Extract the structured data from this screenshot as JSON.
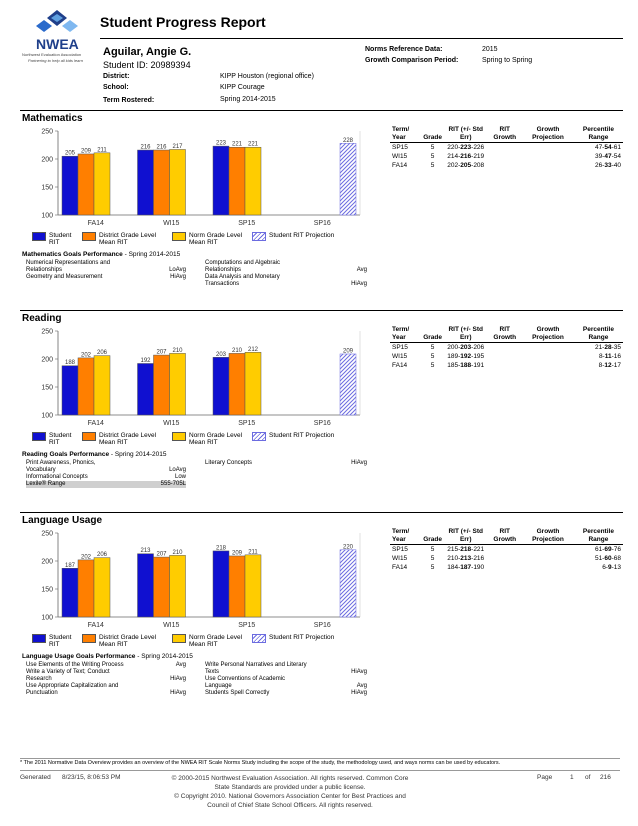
{
  "logo": {
    "name": "NWEA",
    "subtitle": "Northwest Evaluation Association",
    "tagline": "Partnering to help all kids learn"
  },
  "report": {
    "title": "Student Progress Report"
  },
  "student": {
    "name": "Aguilar, Angie G.",
    "id": "Student ID: 20989394",
    "district_label": "District:",
    "district": "KIPP Houston (regional office)",
    "school_label": "School:",
    "school": "KIPP Courage",
    "term_label": "Term Rostered:",
    "term": "Spring 2014-2015",
    "norms_label": "Norms Reference Data:",
    "norms": "2015",
    "growth_label": "Growth Comparison Period:",
    "growth": "Spring to Spring"
  },
  "table_headers": [
    "Term/ Year",
    "Grade",
    "RIT (+/- Std Err)",
    "RIT Growth",
    "Growth Projection",
    "Percentile Range"
  ],
  "legend": {
    "student_rit": "Student RIT",
    "district": "District Grade Level Mean RIT",
    "norm": "Norm Grade Level Mean RIT",
    "projection": "Student RIT Projection"
  },
  "colors": {
    "student": "#1010d0",
    "district": "#ff7f00",
    "norm": "#ffcc00",
    "projection": "#6c6ce0"
  },
  "sections": [
    {
      "title": "Mathematics",
      "chart_data": {
        "type": "bar",
        "categories": [
          "FA14",
          "WI15",
          "SP15",
          "SP16"
        ],
        "ylim": [
          100,
          250
        ],
        "yticks": [
          100,
          150,
          200,
          250
        ],
        "series": [
          {
            "name": "Student RIT",
            "values": [
              205,
              216,
              223,
              null
            ]
          },
          {
            "name": "District Grade Level Mean RIT",
            "values": [
              209,
              216,
              221,
              null
            ]
          },
          {
            "name": "Norm Grade Level Mean RIT",
            "values": [
              211,
              217,
              221,
              null
            ]
          },
          {
            "name": "Student RIT Projection",
            "values": [
              null,
              null,
              null,
              228
            ]
          }
        ]
      },
      "rows": [
        {
          "term": "SP15",
          "grade": "5",
          "rit_lo": "220-",
          "rit": "223",
          "rit_hi": "-226",
          "growth": "",
          "proj": "",
          "pct_lo": "47-",
          "pct": "54",
          "pct_hi": "-61"
        },
        {
          "term": "WI15",
          "grade": "5",
          "rit_lo": "214-",
          "rit": "216",
          "rit_hi": "-219",
          "growth": "",
          "proj": "",
          "pct_lo": "39-",
          "pct": "47",
          "pct_hi": "-54"
        },
        {
          "term": "FA14",
          "grade": "5",
          "rit_lo": "202-",
          "rit": "205",
          "rit_hi": "-208",
          "growth": "",
          "proj": "",
          "pct_lo": "26-",
          "pct": "33",
          "pct_hi": "-40"
        }
      ],
      "goals_title": "Mathematics Goals Performance",
      "goals_term": " - Spring 2014-2015",
      "goals_left": [
        {
          "name": "Numerical Representations and",
          "level": ""
        },
        {
          "name": "Relationships",
          "level": "LoAvg"
        },
        {
          "name": "Geometry and Measurement",
          "level": "HiAvg"
        }
      ],
      "goals_right": [
        {
          "name": "Computations and Algebraic",
          "level": ""
        },
        {
          "name": "Relationships",
          "level": "Avg"
        },
        {
          "name": "Data Analysis and Monetary",
          "level": ""
        },
        {
          "name": "Transactions",
          "level": "HiAvg"
        }
      ]
    },
    {
      "title": "Reading",
      "chart_data": {
        "type": "bar",
        "categories": [
          "FA14",
          "WI15",
          "SP15",
          "SP16"
        ],
        "ylim": [
          100,
          250
        ],
        "yticks": [
          100,
          150,
          200,
          250
        ],
        "series": [
          {
            "name": "Student RIT",
            "values": [
              188,
              192,
              203,
              null
            ]
          },
          {
            "name": "District Grade Level Mean RIT",
            "values": [
              202,
              207,
              210,
              null
            ]
          },
          {
            "name": "Norm Grade Level Mean RIT",
            "values": [
              206,
              210,
              212,
              null
            ]
          },
          {
            "name": "Student RIT Projection",
            "values": [
              null,
              null,
              null,
              209
            ]
          }
        ]
      },
      "rows": [
        {
          "term": "SP15",
          "grade": "5",
          "rit_lo": "200-",
          "rit": "203",
          "rit_hi": "-206",
          "growth": "",
          "proj": "",
          "pct_lo": "21-",
          "pct": "28",
          "pct_hi": "-35"
        },
        {
          "term": "WI15",
          "grade": "5",
          "rit_lo": "189-",
          "rit": "192",
          "rit_hi": "-195",
          "growth": "",
          "proj": "",
          "pct_lo": "8-",
          "pct": "11",
          "pct_hi": "-16"
        },
        {
          "term": "FA14",
          "grade": "5",
          "rit_lo": "185-",
          "rit": "188",
          "rit_hi": "-191",
          "growth": "",
          "proj": "",
          "pct_lo": "8-",
          "pct": "12",
          "pct_hi": "-17"
        }
      ],
      "goals_title": "Reading Goals Performance",
      "goals_term": " - Spring 2014-2015",
      "goals_left": [
        {
          "name": "Print Awareness, Phonics,",
          "level": ""
        },
        {
          "name": "Vocabulary",
          "level": "LoAvg"
        },
        {
          "name": "Informational Concepts",
          "level": "Low"
        },
        {
          "name": "Lexile® Range",
          "level": "555-705L"
        }
      ],
      "goals_right": [
        {
          "name": "Literary Concepts",
          "level": "HiAvg"
        }
      ]
    },
    {
      "title": "Language Usage",
      "chart_data": {
        "type": "bar",
        "categories": [
          "FA14",
          "WI15",
          "SP15",
          "SP16"
        ],
        "ylim": [
          100,
          250
        ],
        "yticks": [
          100,
          150,
          200,
          250
        ],
        "series": [
          {
            "name": "Student RIT",
            "values": [
              187,
              213,
              218,
              null
            ]
          },
          {
            "name": "District Grade Level Mean RIT",
            "values": [
              202,
              207,
              209,
              null
            ]
          },
          {
            "name": "Norm Grade Level Mean RIT",
            "values": [
              206,
              210,
              211,
              null
            ]
          },
          {
            "name": "Student RIT Projection",
            "values": [
              null,
              null,
              null,
              220
            ]
          }
        ]
      },
      "rows": [
        {
          "term": "SP15",
          "grade": "5",
          "rit_lo": "215-",
          "rit": "218",
          "rit_hi": "-221",
          "growth": "",
          "proj": "",
          "pct_lo": "61-",
          "pct": "69",
          "pct_hi": "-76"
        },
        {
          "term": "WI15",
          "grade": "5",
          "rit_lo": "210-",
          "rit": "213",
          "rit_hi": "-216",
          "growth": "",
          "proj": "",
          "pct_lo": "51-",
          "pct": "60",
          "pct_hi": "-68"
        },
        {
          "term": "FA14",
          "grade": "5",
          "rit_lo": "184-",
          "rit": "187",
          "rit_hi": "-190",
          "growth": "",
          "proj": "",
          "pct_lo": "6-",
          "pct": "9",
          "pct_hi": "-13"
        }
      ],
      "goals_title": "Language Usage Goals Performance",
      "goals_term": " - Spring 2014-2015",
      "goals_left": [
        {
          "name": "Use Elements of the Writing Process",
          "level": "Avg"
        },
        {
          "name": "Write a Variety of Text; Conduct",
          "level": ""
        },
        {
          "name": "Research",
          "level": "HiAvg"
        },
        {
          "name": "Use Appropriate Capitalization and",
          "level": ""
        },
        {
          "name": "Punctuation",
          "level": "HiAvg"
        }
      ],
      "goals_right": [
        {
          "name": "Write Personal Narratives and Literary",
          "level": ""
        },
        {
          "name": "Texts",
          "level": "HiAvg"
        },
        {
          "name": "Use Conventions of Academic",
          "level": ""
        },
        {
          "name": "Language",
          "level": "Avg"
        },
        {
          "name": "Students Spell Correctly",
          "level": "HiAvg"
        }
      ]
    }
  ],
  "footnote": "* The 2011 Normative Data Overview provides an overview of the NWEA RIT Scale Norms Study including the scope of the study, the methodology used, and ways norms can be used by educators.",
  "footer": {
    "generated_label": "Generated",
    "generated": "8/23/15, 8:06:53 PM",
    "copyright_1": "© 2000-2015 Northwest Evaluation Association. All rights reserved. Common Core",
    "copyright_2": "State Standards are provided under a public license.",
    "copyright_3": "© Copyright 2010. National Governors Association Center for Best Practices and",
    "copyright_4": "Council of Chief State School Officers. All rights reserved.",
    "page_label": "Page",
    "page": "1",
    "of_label": "of",
    "total": "216"
  }
}
